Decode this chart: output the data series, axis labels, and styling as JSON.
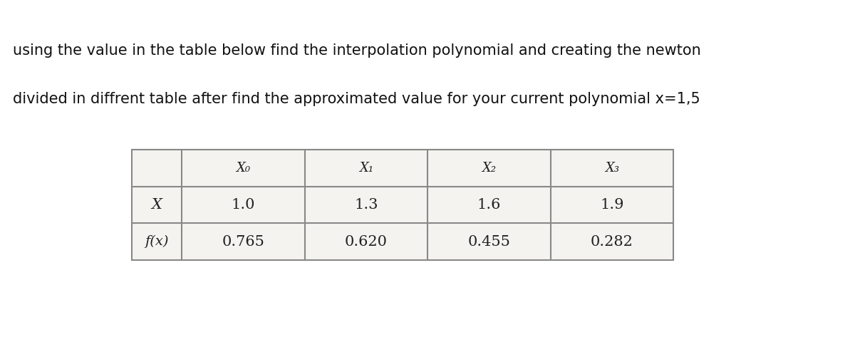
{
  "title_line1": "using the value in the table below find the interpolation polynomial and creating the newton",
  "title_line2": "divided in diffrent table after find the approximated value for your current polynomial x=1,5",
  "title_fontsize": 15.0,
  "title_color": "#111111",
  "col_headers": [
    "X₀",
    "X₁",
    "X₂",
    "X₃"
  ],
  "row_labels": [
    "X",
    "f(x)"
  ],
  "x_values": [
    "1.0",
    "1.3",
    "1.6",
    "1.9"
  ],
  "fx_values": [
    "0.765",
    "0.620",
    "0.455",
    "0.282"
  ],
  "table_photo_bg": "#c8bfb0",
  "table_border_color": "#888888",
  "cell_bg": "#f5f3f0",
  "button1_bg": "#737373",
  "button2_bg": "#cc6600",
  "button_symbol1": "↺",
  "button_symbol2": "↻",
  "background_top": "#ffffff",
  "separator_color": "#cccccc",
  "top_thin_line": "#d0d0d0",
  "outer_border_color": "#aaaaaa"
}
